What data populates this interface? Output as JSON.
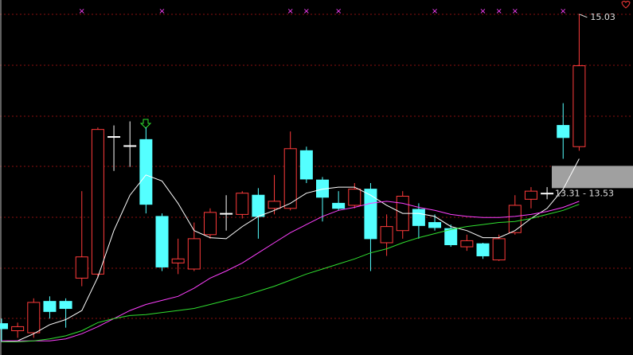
{
  "chart_data": {
    "type": "candlestick",
    "ylim": [
      11.66,
      15.17
    ],
    "up_color": "#ff3b3b",
    "down_color": "#54ffff",
    "doji_color": "#ffffff",
    "candles": [
      {
        "open": 11.97,
        "high": 12.02,
        "low": 11.79,
        "close": 11.92
      },
      {
        "open": 11.9,
        "high": 11.98,
        "low": 11.83,
        "close": 11.94
      },
      {
        "open": 11.88,
        "high": 12.22,
        "low": 11.83,
        "close": 12.18
      },
      {
        "open": 12.19,
        "high": 12.24,
        "low": 12.02,
        "close": 12.09
      },
      {
        "open": 12.19,
        "high": 12.22,
        "low": 11.93,
        "close": 12.12
      },
      {
        "open": 12.42,
        "high": 13.28,
        "low": 12.34,
        "close": 12.63
      },
      {
        "open": 12.46,
        "high": 13.91,
        "low": 12.42,
        "close": 13.89
      },
      {
        "open": 13.82,
        "high": 13.93,
        "low": 13.48,
        "close": 13.82
      },
      {
        "open": 13.73,
        "high": 13.97,
        "low": 13.52,
        "close": 13.73
      },
      {
        "open": 13.79,
        "high": 13.91,
        "low": 13.06,
        "close": 13.15
      },
      {
        "open": 13.03,
        "high": 13.06,
        "low": 12.49,
        "close": 12.53
      },
      {
        "open": 12.57,
        "high": 12.81,
        "low": 12.46,
        "close": 12.61
      },
      {
        "open": 12.51,
        "high": 12.97,
        "low": 12.49,
        "close": 12.81
      },
      {
        "open": 12.85,
        "high": 13.11,
        "low": 12.81,
        "close": 13.07
      },
      {
        "open": 13.06,
        "high": 13.24,
        "low": 12.89,
        "close": 13.06
      },
      {
        "open": 13.05,
        "high": 13.28,
        "low": 13.01,
        "close": 13.26
      },
      {
        "open": 13.24,
        "high": 13.31,
        "low": 12.81,
        "close": 13.03
      },
      {
        "open": 13.11,
        "high": 13.44,
        "low": 13.05,
        "close": 13.18
      },
      {
        "open": 13.11,
        "high": 13.87,
        "low": 13.09,
        "close": 13.7
      },
      {
        "open": 13.68,
        "high": 13.72,
        "low": 13.36,
        "close": 13.4
      },
      {
        "open": 13.39,
        "high": 13.42,
        "low": 12.98,
        "close": 13.22
      },
      {
        "open": 13.16,
        "high": 13.28,
        "low": 13.09,
        "close": 13.11
      },
      {
        "open": 13.14,
        "high": 13.36,
        "low": 13.11,
        "close": 13.3
      },
      {
        "open": 13.3,
        "high": 13.36,
        "low": 12.49,
        "close": 12.81
      },
      {
        "open": 12.77,
        "high": 13.05,
        "low": 12.64,
        "close": 12.93
      },
      {
        "open": 12.89,
        "high": 13.28,
        "low": 12.81,
        "close": 13.23
      },
      {
        "open": 13.1,
        "high": 13.16,
        "low": 12.81,
        "close": 12.94
      },
      {
        "open": 12.97,
        "high": 13.05,
        "low": 12.89,
        "close": 12.92
      },
      {
        "open": 12.91,
        "high": 12.95,
        "low": 12.73,
        "close": 12.75
      },
      {
        "open": 12.73,
        "high": 12.85,
        "low": 12.69,
        "close": 12.79
      },
      {
        "open": 12.76,
        "high": 12.77,
        "low": 12.61,
        "close": 12.64
      },
      {
        "open": 12.6,
        "high": 12.85,
        "low": 12.59,
        "close": 12.81
      },
      {
        "open": 12.87,
        "high": 13.24,
        "low": 12.85,
        "close": 13.14
      },
      {
        "open": 13.2,
        "high": 13.32,
        "low": 13.11,
        "close": 13.28
      },
      {
        "open": 13.26,
        "high": 13.32,
        "low": 13.2,
        "close": 13.26
      },
      {
        "open": 13.93,
        "high": 14.15,
        "low": 13.6,
        "close": 13.81
      },
      {
        "open": 13.72,
        "high": 15.03,
        "low": 13.68,
        "close": 14.52
      }
    ],
    "lines": [
      {
        "color": "#ffffff",
        "values": [
          11.79,
          11.8,
          11.87,
          11.96,
          12.01,
          12.1,
          12.43,
          12.89,
          13.24,
          13.44,
          13.38,
          13.16,
          12.89,
          12.82,
          12.81,
          12.93,
          13.03,
          13.09,
          13.16,
          13.26,
          13.3,
          13.32,
          13.32,
          13.24,
          13.14,
          13.06,
          13.06,
          13.03,
          12.93,
          12.89,
          12.82,
          12.82,
          12.89,
          13.01,
          13.11,
          13.3,
          13.6
        ]
      },
      {
        "color": "#ff40ff",
        "values": [
          11.8,
          11.8,
          11.8,
          11.8,
          11.82,
          11.87,
          11.94,
          12.02,
          12.1,
          12.16,
          12.2,
          12.24,
          12.32,
          12.42,
          12.49,
          12.57,
          12.67,
          12.77,
          12.87,
          12.95,
          13.03,
          13.09,
          13.12,
          13.16,
          13.18,
          13.16,
          13.12,
          13.09,
          13.05,
          13.03,
          13.02,
          13.02,
          13.03,
          13.05,
          13.08,
          13.12,
          13.18
        ]
      },
      {
        "color": "#30e030",
        "values": [
          11.79,
          11.79,
          11.8,
          11.82,
          11.85,
          11.9,
          11.98,
          12.02,
          12.05,
          12.06,
          12.08,
          12.1,
          12.12,
          12.16,
          12.2,
          12.24,
          12.29,
          12.34,
          12.4,
          12.46,
          12.51,
          12.56,
          12.61,
          12.67,
          12.71,
          12.77,
          12.82,
          12.86,
          12.9,
          12.93,
          12.95,
          12.97,
          12.98,
          13.01,
          13.05,
          13.09,
          13.15
        ]
      }
    ],
    "marker_text": "×",
    "marker_candles": [
      5,
      10,
      18,
      19,
      21,
      27,
      30,
      31,
      32,
      35
    ],
    "high_label": 15.03,
    "band": {
      "low": 13.31,
      "high": 13.53,
      "label": "13.31 - 13.53"
    }
  }
}
